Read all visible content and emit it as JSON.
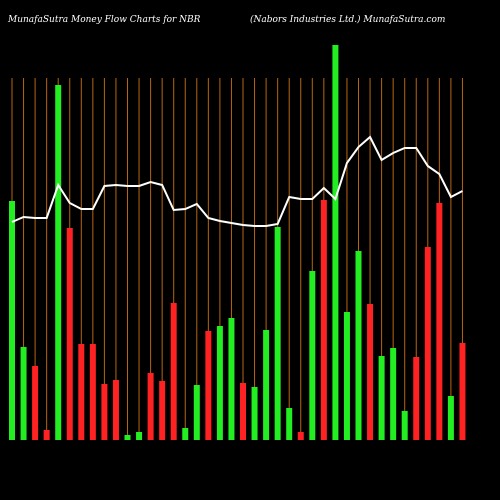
{
  "chart_data": {
    "type": "bar",
    "title": "MunafaSutra  Money Flow  Charts for NBR",
    "subtitle": "(Nabors Industries Ltd.) MunafaSutra.com",
    "categories": [
      null,
      null,
      null,
      null,
      null,
      null,
      null,
      null,
      null,
      null,
      null,
      null,
      null,
      null,
      null,
      null,
      null,
      null,
      null,
      null,
      null,
      null,
      null,
      null,
      null,
      null,
      null,
      null,
      null,
      null,
      null,
      null,
      null,
      null,
      null,
      null,
      null,
      null,
      null,
      null
    ],
    "values": [
      59.75,
      23.25,
      18.5,
      2.5,
      88.75,
      53,
      24,
      24,
      14,
      15,
      1.25,
      2,
      16.75,
      14.75,
      34.25,
      3,
      13.75,
      27.25,
      28.5,
      30.5,
      14.25,
      13.25,
      27.5,
      53.25,
      8,
      2,
      42.25,
      60,
      98.75,
      32,
      47.25,
      34,
      21,
      23,
      7.25,
      20.75,
      48.25,
      59.25,
      11,
      24.25
    ],
    "colors": [
      "#22ee22",
      "#22ee22",
      "#ff2222",
      "#ff2222",
      "#22ee22",
      "#ff2222",
      "#ff2222",
      "#ff2222",
      "#ff2222",
      "#ff2222",
      "#22ee22",
      "#22ee22",
      "#ff2222",
      "#ff2222",
      "#ff2222",
      "#22ee22",
      "#22ee22",
      "#ff2222",
      "#22ee22",
      "#22ee22",
      "#ff2222",
      "#22ee22",
      "#22ee22",
      "#22ee22",
      "#22ee22",
      "#ff2222",
      "#22ee22",
      "#ff2222",
      "#22ee22",
      "#22ee22",
      "#22ee22",
      "#ff2222",
      "#22ee22",
      "#22ee22",
      "#22ee22",
      "#ff2222",
      "#ff2222",
      "#ff2222",
      "#22ee22",
      "#ff2222"
    ],
    "line": {
      "color": "#ffffff",
      "values": [
        54.5,
        55.75,
        55.5,
        55.5,
        63.75,
        59.25,
        57.75,
        57.75,
        63.5,
        63.75,
        63.5,
        63.5,
        64.5,
        63.75,
        57.5,
        57.75,
        59,
        55.5,
        54.75,
        54.25,
        53.75,
        53.5,
        53.5,
        54,
        60.75,
        60.25,
        60.25,
        63,
        60.25,
        69.25,
        73.25,
        75.75,
        70,
        71.75,
        73,
        73,
        68.5,
        66.5,
        60.75,
        62.25
      ]
    },
    "grid_color": "#b8650f"
  }
}
